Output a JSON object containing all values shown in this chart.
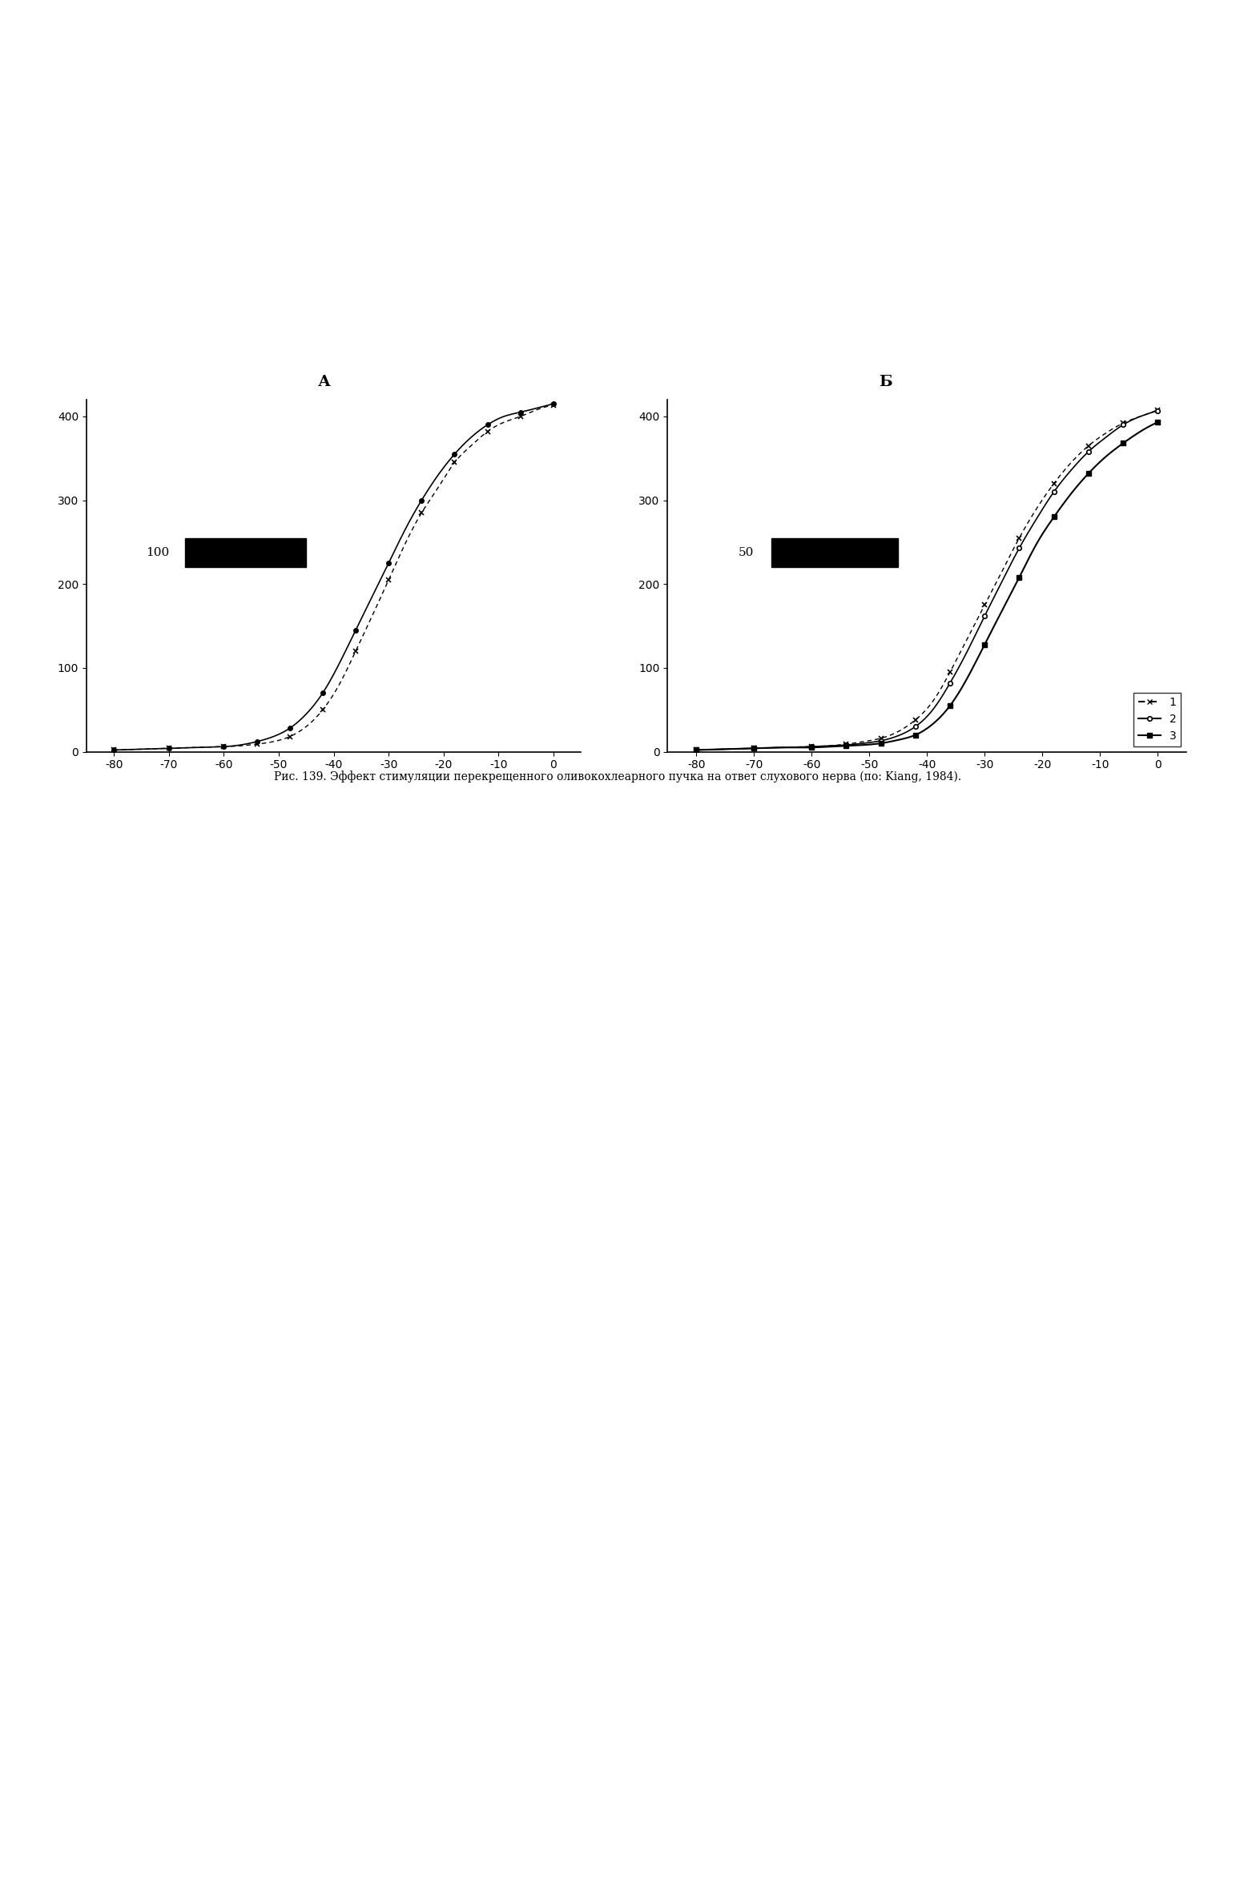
{
  "title_A": "А",
  "title_B": "Б",
  "caption": "Рис. 139. Эффект стимуляции перекрещенного оливокохлеарного пучка на ответ слухового нерва (по: Kiang, 1984).",
  "xlim": [
    -85,
    5
  ],
  "ylim_A": [
    0,
    420
  ],
  "ylim_B": [
    0,
    420
  ],
  "xticks": [
    -80,
    -70,
    -60,
    -50,
    -40,
    -30,
    -20,
    -10,
    0
  ],
  "yticks_A": [
    0,
    100,
    200,
    300,
    400
  ],
  "yticks_B": [
    0,
    100,
    200,
    300,
    400
  ],
  "background_color": "#ffffff",
  "line_color": "#000000",
  "panel_A_curve1_x": [
    -80,
    -75,
    -70,
    -65,
    -60,
    -57,
    -54,
    -51,
    -48,
    -45,
    -42,
    -39,
    -36,
    -33,
    -30,
    -27,
    -24,
    -21,
    -18,
    -15,
    -12,
    -9,
    -6,
    -3,
    0
  ],
  "panel_A_curve1_y": [
    2,
    3,
    4,
    5,
    6,
    8,
    12,
    18,
    28,
    45,
    70,
    105,
    145,
    185,
    225,
    265,
    300,
    330,
    355,
    375,
    390,
    400,
    405,
    410,
    415
  ],
  "panel_A_curve2_x": [
    -80,
    -75,
    -70,
    -65,
    -60,
    -57,
    -54,
    -51,
    -48,
    -45,
    -42,
    -39,
    -36,
    -33,
    -30,
    -27,
    -24,
    -21,
    -18,
    -15,
    -12,
    -9,
    -6,
    -3,
    0
  ],
  "panel_A_curve2_y": [
    2,
    3,
    4,
    5,
    6,
    7,
    9,
    12,
    18,
    30,
    50,
    80,
    120,
    162,
    205,
    248,
    285,
    315,
    345,
    365,
    382,
    393,
    400,
    408,
    413
  ],
  "panel_B_curve1_x": [
    -80,
    -75,
    -70,
    -65,
    -60,
    -57,
    -54,
    -51,
    -48,
    -45,
    -42,
    -39,
    -36,
    -33,
    -30,
    -27,
    -24,
    -21,
    -18,
    -15,
    -12,
    -9,
    -6,
    -3,
    0
  ],
  "panel_B_curve1_y": [
    2,
    3,
    4,
    5,
    6,
    7,
    9,
    12,
    16,
    24,
    38,
    60,
    95,
    135,
    175,
    215,
    255,
    290,
    320,
    345,
    365,
    380,
    392,
    400,
    408
  ],
  "panel_B_curve2_x": [
    -80,
    -75,
    -70,
    -65,
    -60,
    -57,
    -54,
    -51,
    -48,
    -45,
    -42,
    -39,
    -36,
    -33,
    -30,
    -27,
    -24,
    -21,
    -18,
    -15,
    -12,
    -9,
    -6,
    -3,
    0
  ],
  "panel_B_curve2_y": [
    2,
    3,
    4,
    5,
    6,
    7,
    8,
    10,
    13,
    19,
    30,
    50,
    82,
    120,
    162,
    203,
    243,
    278,
    310,
    336,
    358,
    375,
    390,
    400,
    407
  ],
  "panel_B_curve3_x": [
    -80,
    -75,
    -70,
    -65,
    -60,
    -57,
    -54,
    -51,
    -48,
    -45,
    -42,
    -39,
    -36,
    -33,
    -30,
    -27,
    -24,
    -21,
    -18,
    -15,
    -12,
    -9,
    -6,
    -3,
    0
  ],
  "panel_B_curve3_y": [
    2,
    3,
    4,
    5,
    5,
    6,
    7,
    8,
    10,
    14,
    20,
    33,
    55,
    88,
    128,
    168,
    208,
    248,
    280,
    308,
    332,
    352,
    368,
    382,
    393
  ],
  "legend_labels": [
    "1",
    "2",
    "3"
  ],
  "inset_label_A": "100",
  "inset_label_B": "50",
  "font_size_title": 13,
  "font_size_axis": 11,
  "font_size_tick": 10,
  "font_size_caption": 10,
  "font_size_legend": 10,
  "font_size_inset": 11,
  "font_size_panel": 14
}
